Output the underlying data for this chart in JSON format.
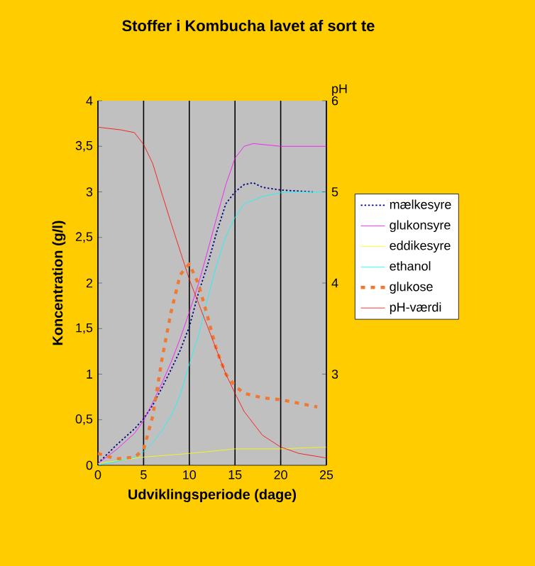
{
  "chart_data": {
    "type": "line",
    "title": "Stoffer i Kombucha lavet af sort te",
    "xlabel": "Udviklingsperiode (dage)",
    "ylabel": "Koncentration (g/l)",
    "y2label": "pH",
    "xlim": [
      0,
      25
    ],
    "xticks": [
      0,
      5,
      10,
      15,
      20,
      25
    ],
    "ylim": [
      0,
      4
    ],
    "yticks": [
      0,
      {
        "value": 0.5,
        "label": "0,5"
      },
      1,
      {
        "value": 1.5,
        "label": "1,5"
      },
      2,
      {
        "value": 2.5,
        "label": "2,5"
      },
      3,
      {
        "value": 3.5,
        "label": "3,5"
      },
      4
    ],
    "y2lim": [
      2,
      6
    ],
    "y2ticks": [
      3,
      4,
      5,
      6
    ],
    "grid": "x",
    "legend": "right",
    "marker": "none",
    "series": [
      {
        "name": "mælkesyre",
        "color": "#000080",
        "line_style": "dotted",
        "x": [
          0,
          2,
          4,
          5,
          6,
          7,
          8,
          9,
          10,
          11,
          12,
          13,
          14,
          15,
          16,
          17,
          18,
          20,
          23.5
        ],
        "values": [
          0.02,
          0.22,
          0.4,
          0.51,
          0.66,
          0.85,
          1.05,
          1.26,
          1.52,
          1.89,
          2.2,
          2.56,
          2.87,
          3.0,
          3.08,
          3.1,
          3.05,
          3.02,
          3.0
        ]
      },
      {
        "name": "glukonsyre",
        "color": "#ff00ff",
        "line_style": "solid",
        "x": [
          0,
          2,
          4,
          5,
          6,
          7,
          8,
          9,
          10,
          11,
          12,
          13,
          14,
          15,
          16,
          17,
          18,
          20,
          25
        ],
        "values": [
          0.02,
          0.17,
          0.35,
          0.49,
          0.69,
          0.9,
          1.13,
          1.39,
          1.68,
          1.99,
          2.35,
          2.72,
          3.08,
          3.37,
          3.5,
          3.53,
          3.52,
          3.5,
          3.5
        ]
      },
      {
        "name": "eddikesyre",
        "color": "#ffff00",
        "line_style": "solid",
        "x": [
          0,
          5,
          10,
          15,
          20,
          25
        ],
        "values": [
          0.02,
          0.09,
          0.13,
          0.18,
          0.18,
          0.2
        ]
      },
      {
        "name": "ethanol",
        "color": "#00ffff",
        "line_style": "solid",
        "x": [
          0,
          2,
          4,
          5,
          6,
          7,
          8,
          9,
          10,
          11,
          12,
          13,
          14,
          15,
          16,
          18,
          20,
          22,
          25
        ],
        "values": [
          0,
          0.04,
          0.09,
          0.15,
          0.25,
          0.38,
          0.54,
          0.77,
          1.11,
          1.42,
          1.83,
          2.2,
          2.51,
          2.72,
          2.87,
          2.95,
          2.99,
          3.0,
          3.0
        ]
      },
      {
        "name": "glukose",
        "color": "#f07830",
        "line_style": "dashed",
        "x": [
          0,
          2,
          4,
          5,
          6,
          7,
          8,
          9,
          10,
          11,
          12,
          13,
          14,
          15,
          16,
          18,
          20,
          22,
          24
        ],
        "values": [
          0.13,
          0.07,
          0.09,
          0.17,
          0.54,
          1.16,
          1.68,
          2.09,
          2.21,
          1.99,
          1.63,
          1.26,
          1.0,
          0.87,
          0.79,
          0.74,
          0.72,
          0.68,
          0.64
        ]
      },
      {
        "name": "pH-værdi",
        "color": "#ff0000",
        "line_style": "solid",
        "axis": "y2",
        "x": [
          0,
          2.5,
          4,
          5,
          6,
          7,
          8,
          9,
          10,
          11,
          12,
          13,
          14,
          15,
          16,
          18,
          20,
          22,
          25
        ],
        "values": [
          5.71,
          5.68,
          5.65,
          5.52,
          5.31,
          4.98,
          4.66,
          4.35,
          4.04,
          3.78,
          3.52,
          3.26,
          3.0,
          2.79,
          2.59,
          2.33,
          2.2,
          2.13,
          2.08
        ]
      }
    ]
  }
}
